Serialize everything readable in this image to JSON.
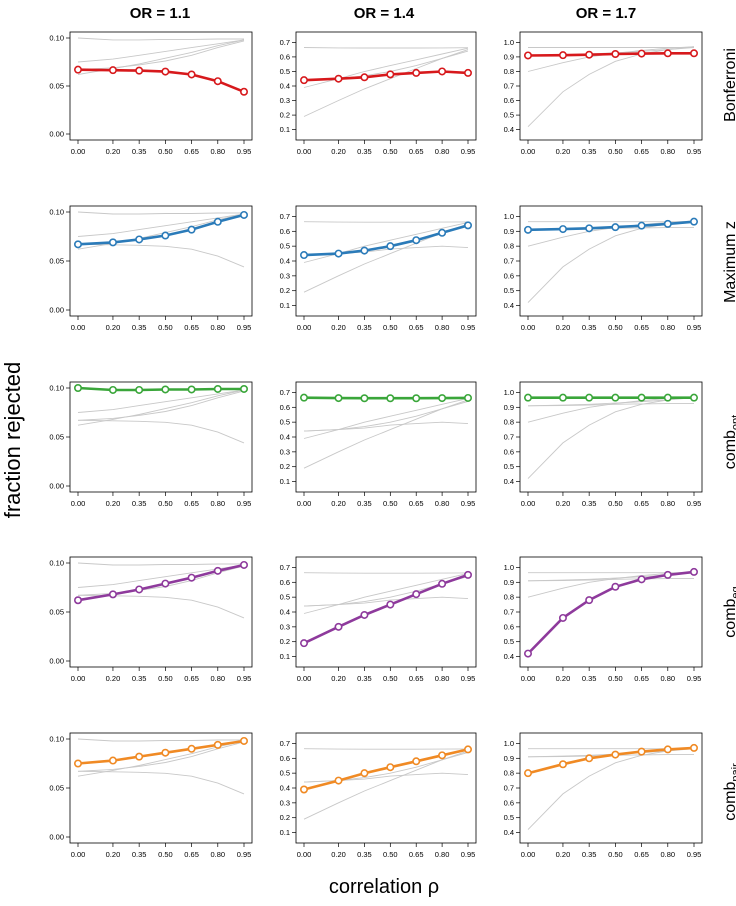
{
  "figure": {
    "column_titles": [
      "OR = 1.1",
      "OR = 1.4",
      "OR = 1.7"
    ],
    "row_labels": [
      {
        "base": "Bonferroni",
        "sub": ""
      },
      {
        "base": "Maximum z",
        "sub": ""
      },
      {
        "base": "comb",
        "sub": "opt"
      },
      {
        "base": "comb",
        "sub": "eq"
      },
      {
        "base": "comb",
        "sub": "pair"
      }
    ],
    "ylabel": "fraction rejected",
    "xlabel": "correlation ρ"
  },
  "colors": {
    "Bonferroni": "#d7191c",
    "Maximum z": "#2b7bb9",
    "comb_opt": "#3aa63a",
    "comb_eq": "#8e3a9c",
    "comb_pair": "#f08a24",
    "reference": "#c8c8c8",
    "axis": "#000000"
  },
  "chart_data": {
    "type": "line",
    "x": [
      0.0,
      0.2,
      0.35,
      0.5,
      0.65,
      0.8,
      0.95
    ],
    "x_tick_labels": [
      "0.00",
      "0.20",
      "0.35",
      "0.50",
      "0.65",
      "0.80",
      "0.95"
    ],
    "xlabel": "correlation ρ",
    "ylabel": "fraction rejected",
    "panels_by_OR": [
      {
        "or": "OR = 1.1",
        "ylim": [
          0.0,
          0.1
        ],
        "y_ticks": [
          0.0,
          0.05,
          0.1
        ],
        "y_tick_labels": [
          "0.00",
          "0.05",
          "0.10"
        ],
        "series": {
          "Bonferroni": [
            0.067,
            0.0665,
            0.066,
            0.065,
            0.062,
            0.055,
            0.044
          ],
          "Maximum z": [
            0.067,
            0.069,
            0.072,
            0.076,
            0.082,
            0.09,
            0.097
          ],
          "comb_opt": [
            0.1,
            0.098,
            0.098,
            0.0985,
            0.0985,
            0.099,
            0.099
          ],
          "comb_eq": [
            0.062,
            0.068,
            0.073,
            0.079,
            0.085,
            0.092,
            0.098
          ],
          "comb_pair": [
            0.075,
            0.078,
            0.082,
            0.086,
            0.09,
            0.094,
            0.098
          ]
        }
      },
      {
        "or": "OR = 1.4",
        "ylim": [
          0.07,
          0.73
        ],
        "y_ticks": [
          0.1,
          0.2,
          0.3,
          0.4,
          0.5,
          0.6,
          0.7
        ],
        "y_tick_labels": [
          "0.1",
          "0.2",
          "0.3",
          "0.4",
          "0.5",
          "0.6",
          "0.7"
        ],
        "series": {
          "Bonferroni": [
            0.44,
            0.45,
            0.46,
            0.48,
            0.49,
            0.5,
            0.49
          ],
          "Maximum z": [
            0.44,
            0.45,
            0.47,
            0.5,
            0.54,
            0.59,
            0.64
          ],
          "comb_opt": [
            0.665,
            0.662,
            0.661,
            0.661,
            0.661,
            0.662,
            0.663
          ],
          "comb_eq": [
            0.19,
            0.3,
            0.38,
            0.45,
            0.52,
            0.59,
            0.65
          ],
          "comb_pair": [
            0.39,
            0.45,
            0.5,
            0.54,
            0.58,
            0.62,
            0.66
          ]
        }
      },
      {
        "or": "OR = 1.7",
        "ylim": [
          0.37,
          1.03
        ],
        "y_ticks": [
          0.4,
          0.5,
          0.6,
          0.7,
          0.8,
          0.9,
          1.0
        ],
        "y_tick_labels": [
          "0.4",
          "0.5",
          "0.6",
          "0.7",
          "0.8",
          "0.9",
          "1.0"
        ],
        "series": {
          "Bonferroni": [
            0.91,
            0.912,
            0.915,
            0.92,
            0.923,
            0.925,
            0.925
          ],
          "Maximum z": [
            0.91,
            0.915,
            0.92,
            0.928,
            0.938,
            0.95,
            0.965
          ],
          "comb_opt": [
            0.965,
            0.965,
            0.965,
            0.965,
            0.965,
            0.965,
            0.965
          ],
          "comb_eq": [
            0.42,
            0.66,
            0.78,
            0.87,
            0.92,
            0.95,
            0.97
          ],
          "comb_pair": [
            0.8,
            0.86,
            0.9,
            0.925,
            0.945,
            0.96,
            0.97
          ]
        }
      }
    ],
    "row_order": [
      "Bonferroni",
      "Maximum z",
      "comb_opt",
      "comb_eq",
      "comb_pair"
    ]
  }
}
